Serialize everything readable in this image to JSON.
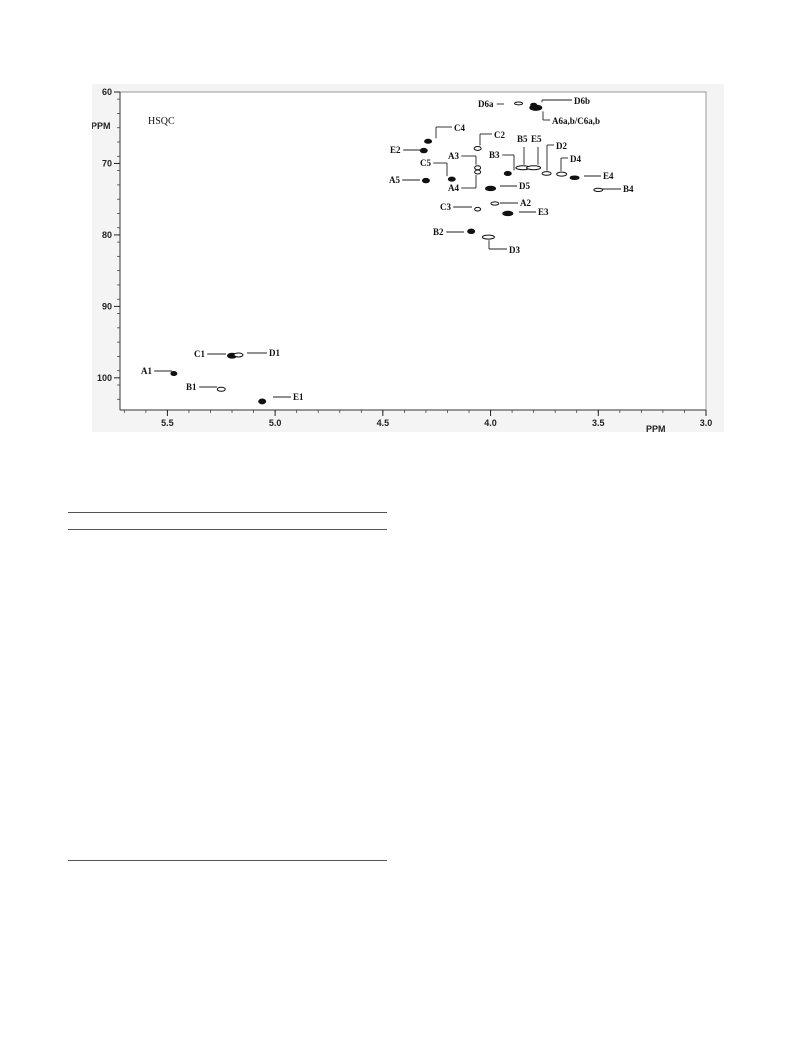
{
  "chart_data": {
    "type": "scatter",
    "subtype": "2D NMR contour plot",
    "title": "HSQC",
    "xlabel": "PPM",
    "ylabel": "PPM",
    "x_reversed": true,
    "y_reversed": true,
    "xlim": [
      5.72,
      3.0
    ],
    "ylim": [
      60,
      104.5
    ],
    "xticks": [
      5.5,
      5.0,
      4.5,
      4.0,
      3.5,
      3.0
    ],
    "xtick_labels": [
      "5.5",
      "5.0",
      "4.5",
      "4.0",
      "3.5",
      "3.0"
    ],
    "yticks": [
      60,
      70,
      80,
      90,
      100
    ],
    "ytick_labels": [
      "60",
      "70",
      "80",
      "90",
      "100"
    ],
    "grid": false,
    "peaks": [
      {
        "label": "D6a",
        "x": 3.87,
        "y": 61.6
      },
      {
        "label": "D6b",
        "x": 3.8,
        "y": 61.8
      },
      {
        "label": "A6a,b/C6a,b",
        "x": 3.79,
        "y": 62.2
      },
      {
        "label": "C4",
        "x": 4.29,
        "y": 66.9
      },
      {
        "label": "C2",
        "x": 4.06,
        "y": 67.9
      },
      {
        "label": "E2",
        "x": 4.31,
        "y": 68.2
      },
      {
        "label": "B5",
        "x": 3.85,
        "y": 70.6
      },
      {
        "label": "E5",
        "x": 3.8,
        "y": 70.6
      },
      {
        "label": "A3",
        "x": 4.06,
        "y": 70.6
      },
      {
        "label": "C5",
        "x": 4.18,
        "y": 72.2
      },
      {
        "label": "D2",
        "x": 3.74,
        "y": 71.4
      },
      {
        "label": "B3",
        "x": 3.92,
        "y": 71.4
      },
      {
        "label": "D4",
        "x": 3.67,
        "y": 71.5
      },
      {
        "label": "A5",
        "x": 4.3,
        "y": 72.4
      },
      {
        "label": "E4",
        "x": 3.61,
        "y": 72.0
      },
      {
        "label": "A4",
        "x": 4.06,
        "y": 71.2
      },
      {
        "label": "D5",
        "x": 4.0,
        "y": 73.5
      },
      {
        "label": "B4",
        "x": 3.5,
        "y": 73.7
      },
      {
        "label": "A2",
        "x": 3.98,
        "y": 75.6
      },
      {
        "label": "C3",
        "x": 4.06,
        "y": 76.4
      },
      {
        "label": "E3",
        "x": 3.92,
        "y": 77.0
      },
      {
        "label": "B2",
        "x": 4.09,
        "y": 79.5
      },
      {
        "label": "D3",
        "x": 4.01,
        "y": 80.3
      },
      {
        "label": "C1",
        "x": 5.2,
        "y": 96.9
      },
      {
        "label": "D1",
        "x": 5.17,
        "y": 96.8
      },
      {
        "label": "A1",
        "x": 5.47,
        "y": 99.4
      },
      {
        "label": "B1",
        "x": 5.25,
        "y": 101.6
      },
      {
        "label": "E1",
        "x": 5.06,
        "y": 103.3
      }
    ]
  }
}
